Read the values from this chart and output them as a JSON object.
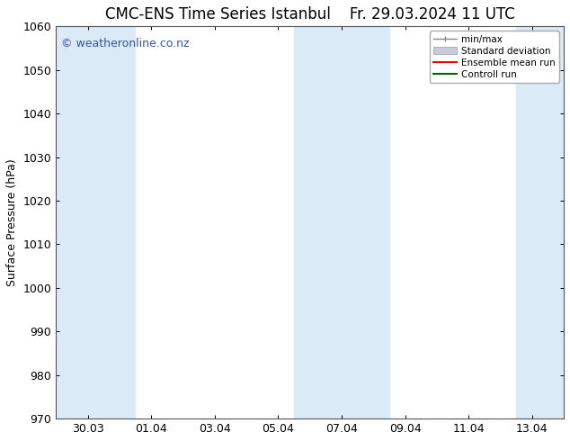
{
  "title_left": "CMC-ENS Time Series Istanbul",
  "title_right": "Fr. 29.03.2024 11 UTC",
  "ylabel": "Surface Pressure (hPa)",
  "ylim": [
    970,
    1060
  ],
  "yticks": [
    970,
    980,
    990,
    1000,
    1010,
    1020,
    1030,
    1040,
    1050,
    1060
  ],
  "xtick_labels": [
    "30.03",
    "01.04",
    "03.04",
    "05.04",
    "07.04",
    "09.04",
    "11.04",
    "13.04"
  ],
  "xtick_positions": [
    1,
    3,
    5,
    7,
    9,
    11,
    13,
    15
  ],
  "xlim": [
    0,
    16
  ],
  "shaded_bands": [
    {
      "x_start": 0,
      "x_end": 2.5,
      "color": "#daeaf7"
    },
    {
      "x_start": 7.5,
      "x_end": 10.5,
      "color": "#daeaf7"
    },
    {
      "x_start": 14.5,
      "x_end": 16,
      "color": "#daeaf7"
    }
  ],
  "watermark_text": "© weatheronline.co.nz",
  "watermark_color": "#3355aa",
  "legend_labels": [
    "min/max",
    "Standard deviation",
    "Ensemble mean run",
    "Controll run"
  ],
  "legend_colors": [
    "#aaaaaa",
    "#bbbbcc",
    "#ff0000",
    "#006600"
  ],
  "title_fontsize": 12,
  "tick_label_fontsize": 9,
  "ylabel_fontsize": 9,
  "watermark_fontsize": 9,
  "background_color": "#ffffff",
  "plot_bg_color": "#ffffff"
}
